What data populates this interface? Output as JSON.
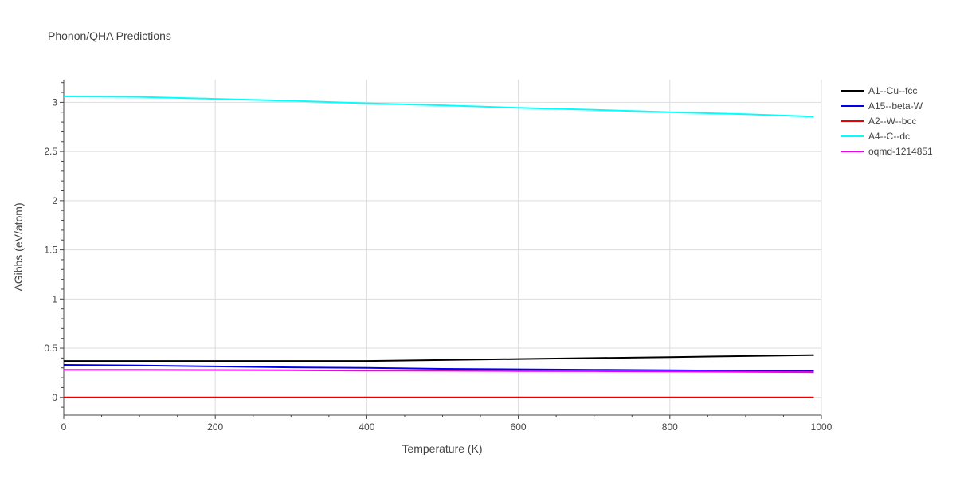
{
  "chart_data": {
    "type": "line",
    "title": "Phonon/QHA Predictions",
    "xlabel": "Temperature (K)",
    "ylabel": "ΔGibbs (eV/atom)",
    "xlim": [
      0,
      1000
    ],
    "ylim": [
      -0.18,
      3.23
    ],
    "xticks": [
      0,
      200,
      400,
      600,
      800,
      1000
    ],
    "xtick_labels": [
      "0",
      "200",
      "400",
      "600",
      "800",
      "1000"
    ],
    "yticks": [
      0,
      0.5,
      1,
      1.5,
      2,
      2.5,
      3
    ],
    "ytick_labels": [
      "0",
      "0.5",
      "1",
      "1.5",
      "2",
      "2.5",
      "3"
    ],
    "grid": true,
    "legend_position": "right",
    "series": [
      {
        "name": "A1--Cu--fcc",
        "color": "#000000",
        "x": [
          0,
          100,
          200,
          300,
          400,
          500,
          600,
          700,
          800,
          900,
          990
        ],
        "y": [
          0.37,
          0.37,
          0.37,
          0.37,
          0.37,
          0.38,
          0.39,
          0.4,
          0.41,
          0.42,
          0.43
        ]
      },
      {
        "name": "A15--beta-W",
        "color": "#0000ee",
        "x": [
          0,
          100,
          200,
          300,
          400,
          500,
          600,
          700,
          800,
          900,
          990
        ],
        "y": [
          0.33,
          0.325,
          0.315,
          0.305,
          0.3,
          0.29,
          0.285,
          0.28,
          0.275,
          0.27,
          0.27
        ]
      },
      {
        "name": "A2--W--bcc",
        "color": "#ee0000",
        "x": [
          0,
          100,
          200,
          300,
          400,
          500,
          600,
          700,
          800,
          900,
          990
        ],
        "y": [
          0,
          0,
          0,
          0,
          0,
          0,
          0,
          0,
          0,
          0,
          0
        ]
      },
      {
        "name": "A4--C--dc",
        "color": "#00ffff",
        "x": [
          0,
          100,
          200,
          300,
          400,
          500,
          600,
          700,
          800,
          900,
          990
        ],
        "y": [
          3.06,
          3.055,
          3.035,
          3.015,
          2.99,
          2.97,
          2.945,
          2.925,
          2.9,
          2.88,
          2.855
        ]
      },
      {
        "name": "oqmd-1214851",
        "color": "#ee00ee",
        "x": [
          0,
          100,
          200,
          300,
          400,
          500,
          600,
          700,
          800,
          900,
          990
        ],
        "y": [
          0.28,
          0.28,
          0.278,
          0.275,
          0.272,
          0.27,
          0.268,
          0.266,
          0.264,
          0.26,
          0.256
        ]
      }
    ]
  }
}
